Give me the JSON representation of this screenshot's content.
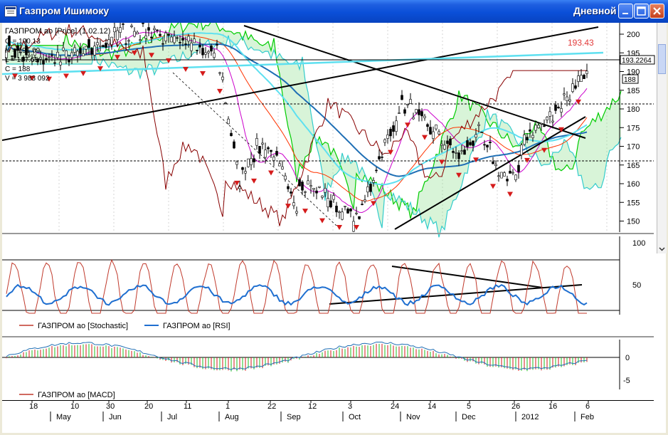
{
  "window": {
    "title": "Газпром Ишимоку",
    "period": "Дневной",
    "minimize_icon": "minimize-icon",
    "maximize_icon": "maximize-icon",
    "close_icon": "close-icon"
  },
  "price_panel": {
    "header": "ГАЗПРОМ ао [Price] (1.02.12)",
    "ohlc": [
      "O = 190.13",
      "H = 191.09",
      "L = 187.65",
      "C = 188",
      "V = 3 983 092"
    ],
    "yticks": [
      200,
      195,
      190,
      185,
      180,
      175,
      170,
      165,
      160,
      155,
      150
    ],
    "last_price_tag": "193.2264",
    "current_price_tag": "188",
    "annotation": "193.43",
    "colors": {
      "candles": "#000000",
      "tenkan": "#cc00cc",
      "kijun": "#ff3300",
      "senkou_a": "#00cc00",
      "senkou_b": "#33cccc",
      "chikou": "#880000",
      "ma_long": "#1f6fb5",
      "ma_short": "#5ee0f0",
      "up_fractal": "#1fce1f",
      "down_fractal": "#d51b1b",
      "annotation": "#e23b3b"
    }
  },
  "osc_panel": {
    "yticks": [
      100,
      50
    ],
    "legend": [
      {
        "label": "ГАЗПРОМ ао [Stochastic]",
        "color": "#c0392b"
      },
      {
        "label": "ГАЗПРОМ ао [RSI]",
        "color": "#1f6fd0"
      }
    ]
  },
  "macd_panel": {
    "yticks": [
      0,
      -5
    ],
    "legend": [
      {
        "label": "ГАЗПРОМ ао [MACD]",
        "color": "#c0392b"
      }
    ]
  },
  "x_axis": {
    "days": [
      "18",
      "10",
      "30",
      "20",
      "11",
      "1",
      "22",
      "12",
      "3",
      "24",
      "14",
      "5",
      "26",
      "16",
      "6"
    ],
    "months": [
      "May",
      "Jun",
      "Jul",
      "Aug",
      "Sep",
      "Oct",
      "Nov",
      "Dec",
      "2012",
      "Feb"
    ]
  }
}
